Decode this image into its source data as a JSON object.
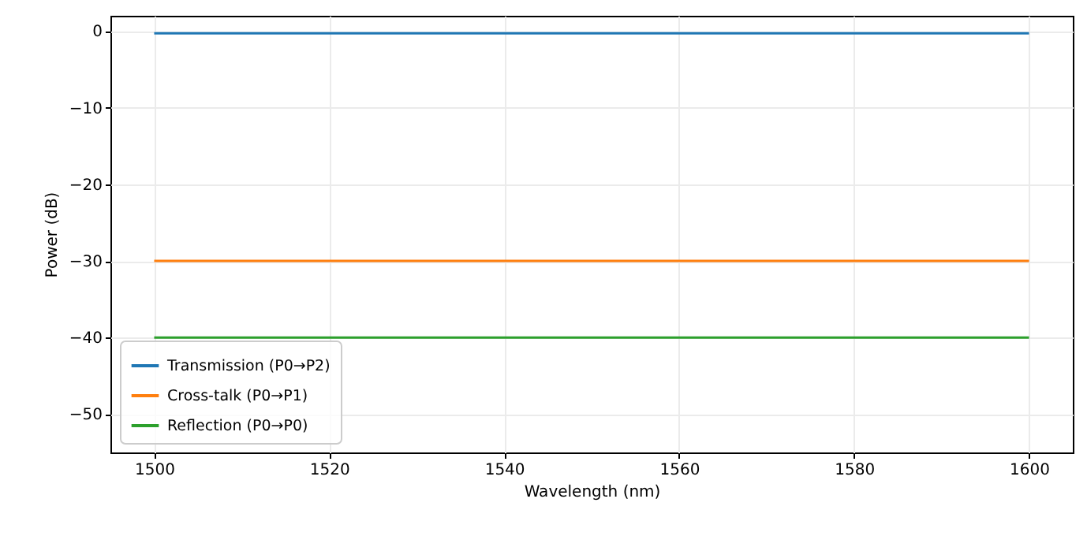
{
  "chart_data": {
    "type": "line",
    "xlabel": "Wavelength (nm)",
    "ylabel": "Power (dB)",
    "x": [
      1500,
      1600
    ],
    "series": [
      {
        "name": "Transmission (P0→P2)",
        "color": "#1f77b4",
        "values": [
          -0.3,
          -0.3
        ]
      },
      {
        "name": "Cross-talk (P0→P1)",
        "color": "#ff7f0e",
        "values": [
          -30,
          -30
        ]
      },
      {
        "name": "Reflection (P0→P0)",
        "color": "#2ca02c",
        "values": [
          -40,
          -40
        ]
      }
    ],
    "xlim": [
      1495,
      1605
    ],
    "xticks": [
      1500,
      1520,
      1540,
      1560,
      1580,
      1600
    ],
    "ylim": [
      -55,
      2
    ],
    "yticks": [
      0,
      {
        "value": -10,
        "label": "−10"
      },
      {
        "value": -20,
        "label": "−20"
      },
      {
        "value": -30,
        "label": "−30"
      },
      {
        "value": -40,
        "label": "−40"
      },
      {
        "value": -50,
        "label": "−50"
      }
    ],
    "grid": true,
    "legend": "bottom left"
  }
}
